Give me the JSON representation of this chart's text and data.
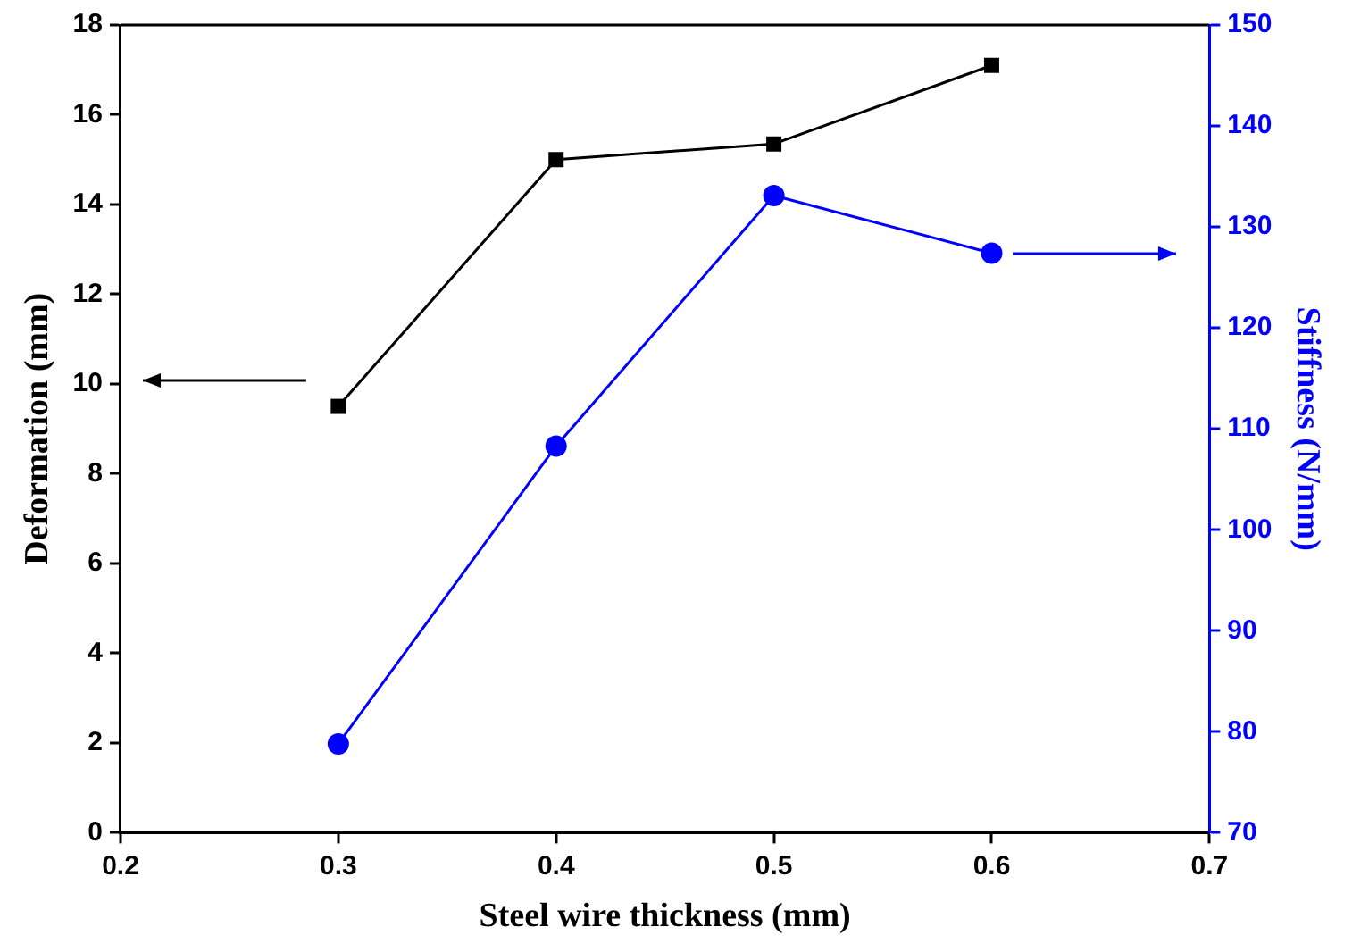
{
  "chart_data": {
    "type": "line",
    "xlabel": "Steel wire thickness (mm)",
    "ylabel": "Deformation (mm)",
    "y2label": "Stiffness (N/mm)",
    "x": [
      0.3,
      0.4,
      0.5,
      0.6
    ],
    "series": [
      {
        "color": "#000000",
        "marker": "square",
        "values": [
          9.5,
          15.0,
          15.35,
          17.1
        ]
      },
      {
        "color": "#0000ff",
        "marker": "circle",
        "axis": "y2",
        "values": [
          78.8,
          108.3,
          133.1,
          127.4
        ]
      }
    ],
    "xlim": [
      0.2,
      0.7
    ],
    "xticks": [
      0.2,
      0.3,
      0.4,
      0.5,
      0.6,
      0.7
    ],
    "ylim": [
      0,
      18
    ],
    "yticks": [
      0,
      2,
      4,
      6,
      8,
      10,
      12,
      14,
      16,
      18
    ],
    "y2lim": [
      70,
      150
    ],
    "y2ticks": [
      70,
      80,
      90,
      100,
      110,
      120,
      130,
      140,
      150
    ],
    "grid": false,
    "legend": false,
    "line_style": "solid"
  }
}
